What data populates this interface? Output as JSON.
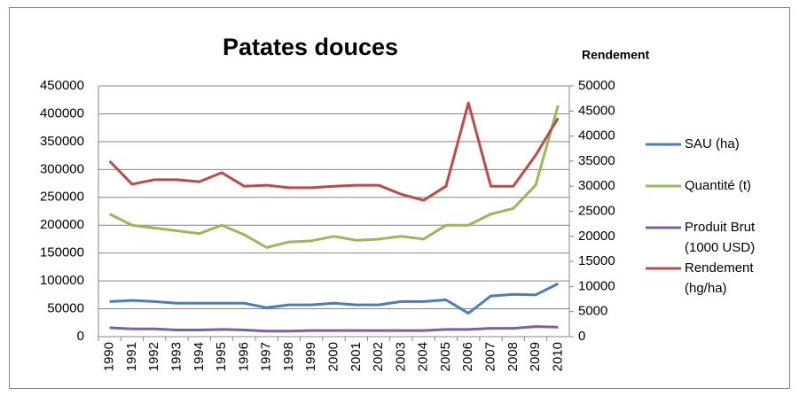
{
  "chart_data": {
    "type": "line",
    "title": "Patates douces",
    "y2_label": "Rendement",
    "categories": [
      "1990",
      "1991",
      "1992",
      "1993",
      "1994",
      "1995",
      "1996",
      "1997",
      "1998",
      "1999",
      "2000",
      "2001",
      "2002",
      "2003",
      "2004",
      "2005",
      "2006",
      "2007",
      "2008",
      "2009",
      "2010"
    ],
    "series": [
      {
        "name": "SAU (ha)",
        "color": "#4a7ebb",
        "values": [
          63000,
          65000,
          63000,
          60000,
          60000,
          60000,
          60000,
          52000,
          57000,
          57000,
          60000,
          57000,
          57000,
          63000,
          63000,
          66000,
          42000,
          73000,
          76000,
          75000,
          95000
        ]
      },
      {
        "name": "Quantité (t)",
        "color": "#98b954",
        "values": [
          220000,
          200000,
          195000,
          190000,
          185000,
          200000,
          183000,
          160000,
          170000,
          172000,
          180000,
          173000,
          175000,
          180000,
          175000,
          200000,
          200000,
          220000,
          230000,
          272000,
          415000
        ]
      },
      {
        "name": "Produit Brut (1000 USD)",
        "color": "#7d60a0",
        "values": [
          16000,
          14000,
          14000,
          12000,
          12000,
          13000,
          12000,
          10000,
          10000,
          11000,
          11000,
          11000,
          11000,
          11000,
          11000,
          13000,
          13000,
          15000,
          15000,
          18000,
          17000
        ]
      },
      {
        "name": "Rendement (hg/ha)",
        "color": "#be4b48",
        "axis": "y2",
        "values": [
          35000,
          30400,
          31300,
          31300,
          30900,
          32700,
          30000,
          30200,
          29700,
          29700,
          30000,
          30200,
          30200,
          28400,
          27200,
          30000,
          46600,
          30000,
          30000,
          36200,
          43600
        ]
      }
    ],
    "ylim": [
      0,
      450000
    ],
    "yticks": [
      0,
      50000,
      100000,
      150000,
      200000,
      250000,
      300000,
      350000,
      400000,
      450000
    ],
    "y2lim": [
      0,
      50000
    ],
    "y2ticks": [
      0,
      5000,
      10000,
      15000,
      20000,
      25000,
      30000,
      35000,
      40000,
      45000,
      50000
    ],
    "grid": true,
    "legend": "right"
  }
}
